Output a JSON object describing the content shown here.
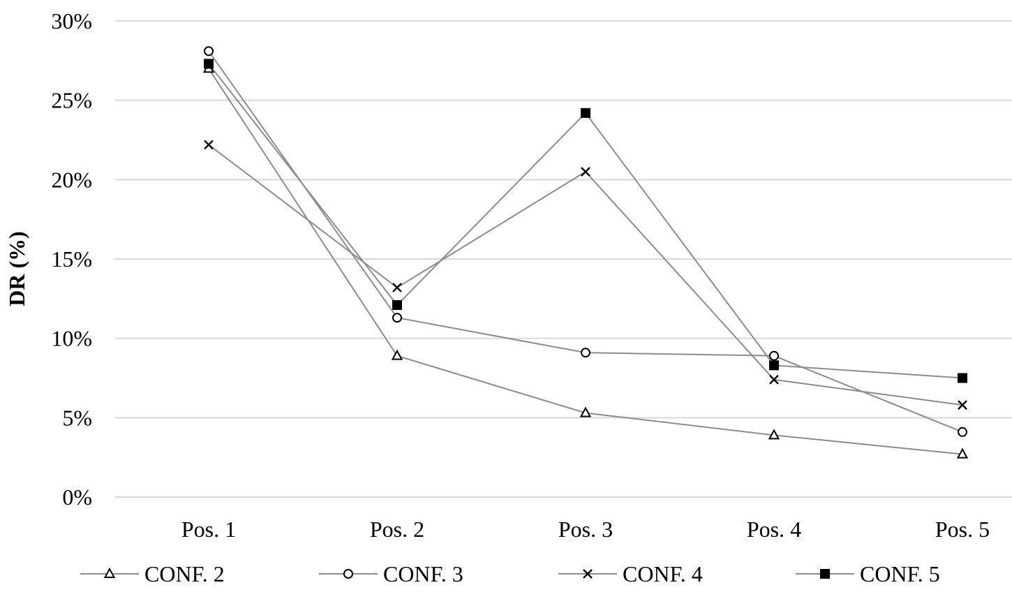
{
  "chart_data": {
    "type": "line",
    "title": "",
    "xlabel": "",
    "ylabel": "DR (%)",
    "categories": [
      "Pos. 1",
      "Pos. 2",
      "Pos. 3",
      "Pos. 4",
      "Pos. 5"
    ],
    "y_ticks": [
      "0%",
      "5%",
      "10%",
      "15%",
      "20%",
      "25%",
      "30%"
    ],
    "ylim": [
      0,
      30
    ],
    "grid": "horizontal",
    "legend_position": "bottom",
    "series": [
      {
        "name": "CONF. 2",
        "marker": "triangle",
        "values": [
          27.0,
          8.9,
          5.3,
          3.9,
          2.7
        ]
      },
      {
        "name": "CONF. 3",
        "marker": "circle",
        "values": [
          28.1,
          11.3,
          9.1,
          8.9,
          4.1
        ]
      },
      {
        "name": "CONF. 4",
        "marker": "x",
        "values": [
          22.2,
          13.2,
          20.5,
          7.4,
          5.8
        ]
      },
      {
        "name": "CONF. 5",
        "marker": "square",
        "values": [
          27.3,
          12.1,
          24.2,
          8.3,
          7.5
        ]
      }
    ],
    "colors": {
      "line": "#8c8c8c",
      "grid": "#d9d9d9",
      "marker": "#000000"
    }
  }
}
